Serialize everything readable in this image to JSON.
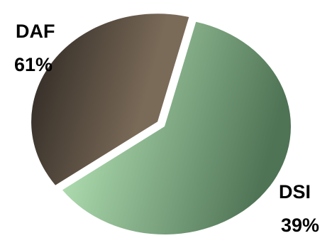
{
  "chart_data": {
    "type": "pie",
    "title": "",
    "slices": [
      {
        "label": "DAF",
        "percent_label": "61%",
        "value": 61,
        "color_light": "#c2f2c2",
        "color_dark": "#4f7355"
      },
      {
        "label": "DSI",
        "percent_label": "39%",
        "value": 39,
        "color_light": "#7a6a58",
        "color_dark": "#2a2520"
      }
    ],
    "exploded_slice": "DSI",
    "legend": "none"
  }
}
